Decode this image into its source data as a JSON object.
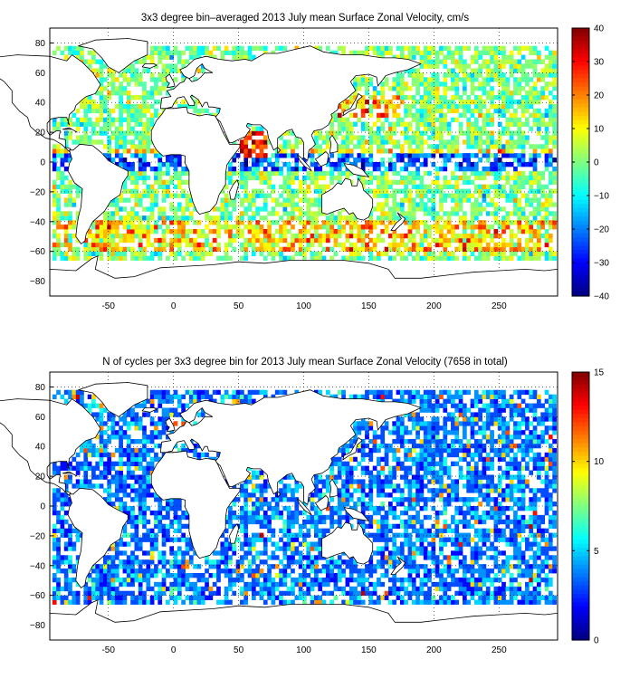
{
  "panels": [
    {
      "title": "3x3 degree bin–averaged 2013 July mean Surface Zonal Velocity, cm/s",
      "x_ticks": [
        "-50",
        "0",
        "50",
        "100",
        "150",
        "200",
        "250"
      ],
      "y_ticks": [
        "80",
        "60",
        "40",
        "20",
        "0",
        "−20",
        "−40",
        "−60",
        "−80"
      ],
      "colorbar": {
        "ticks": [
          "40",
          "30",
          "20",
          "10",
          "0",
          "−10",
          "−20",
          "−30",
          "−40"
        ],
        "min": -40,
        "max": 40,
        "colormap": "jet"
      }
    },
    {
      "title": "N of cycles per 3x3 degree bin for 2013 July mean Surface Zonal Velocity (7658 in total)",
      "x_ticks": [
        "-50",
        "0",
        "50",
        "100",
        "150",
        "200",
        "250"
      ],
      "y_ticks": [
        "80",
        "60",
        "40",
        "20",
        "0",
        "−20",
        "−40",
        "−60",
        "−80"
      ],
      "colorbar": {
        "ticks": [
          "15",
          "10",
          "5",
          "0"
        ],
        "min": 0,
        "max": 15,
        "colormap": "jet"
      }
    }
  ],
  "map": {
    "lon_range": [
      -95,
      295
    ],
    "lat_range": [
      -90,
      90
    ],
    "bin_size_degrees": 3,
    "grid": "dotted"
  },
  "colors": {
    "land_outline": "#000000",
    "ocean_background": "#ffffff",
    "frame": "#000000"
  }
}
